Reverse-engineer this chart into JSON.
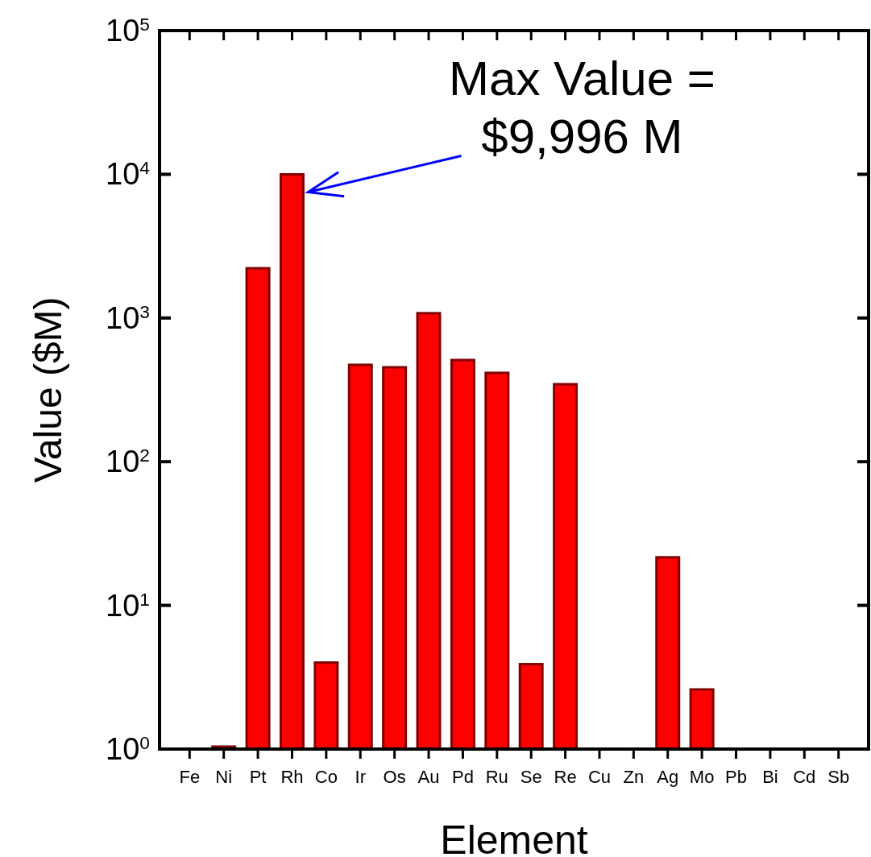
{
  "chart_data": {
    "type": "bar",
    "xlabel": "Element",
    "ylabel": "Value ($M)",
    "categories": [
      "Fe",
      "Ni",
      "Pt",
      "Rh",
      "Co",
      "Ir",
      "Os",
      "Au",
      "Pd",
      "Ru",
      "Se",
      "Re",
      "Cu",
      "Zn",
      "Ag",
      "Mo",
      "Pb",
      "Bi",
      "Cd",
      "Sb"
    ],
    "values": [
      null,
      1.04,
      2220,
      9996,
      4.0,
      472,
      454,
      1080,
      510,
      415,
      3.9,
      346,
      null,
      null,
      21.6,
      2.6,
      null,
      null,
      null,
      null
    ],
    "color": "#ff0000",
    "log": true,
    "grid": false,
    "ylim": [
      1,
      100000
    ],
    "yticks": [
      {
        "value": 1,
        "label": "10$^{0}$"
      },
      {
        "value": 10,
        "label": "10$^{1}$"
      },
      {
        "value": 100,
        "label": "10$^{2}$"
      },
      {
        "value": 1000,
        "label": "10$^{3}$"
      },
      {
        "value": 10000,
        "label": "10$^{4}$"
      },
      {
        "value": 100000,
        "label": "10$^{5}$"
      }
    ],
    "annotations": [
      "Max Value =\n$9,996 M"
    ]
  }
}
